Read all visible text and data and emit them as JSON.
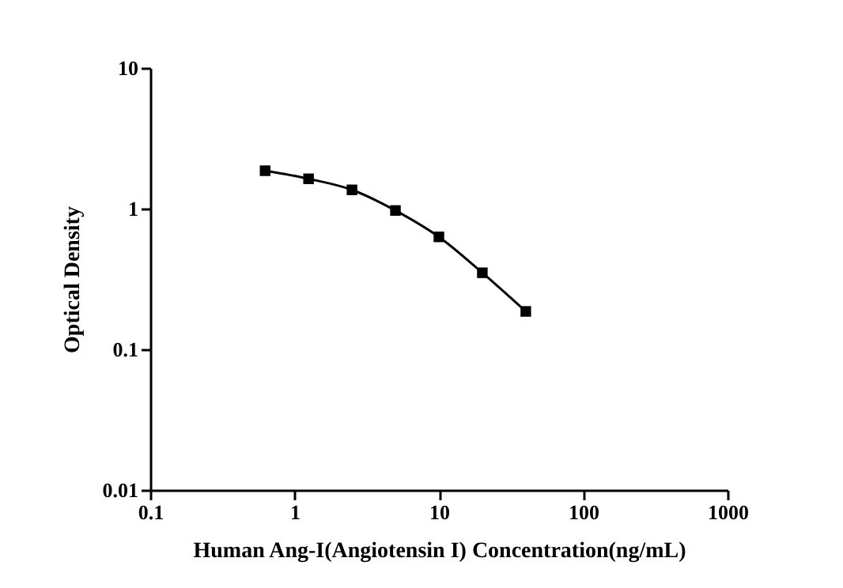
{
  "chart_data": {
    "type": "line",
    "xlabel": "Human Ang-I(Angiotensin I) Concentration(ng/mL)",
    "ylabel": "Optical Density",
    "x": [
      0.625,
      1.25,
      2.5,
      5,
      10,
      20,
      40
    ],
    "series": [
      {
        "color": "#000000",
        "values": [
          1.86,
          1.63,
          1.36,
          0.97,
          0.63,
          0.35,
          0.186
        ]
      }
    ],
    "log": "xy",
    "xlim": [
      0.1,
      1000
    ],
    "xticks": [
      0.1,
      1,
      10,
      100,
      1000
    ],
    "ylim": [
      0.01,
      10
    ],
    "yticks": [
      0.01,
      0.1,
      1,
      10
    ],
    "grid": false,
    "marker": "square",
    "line_style": "solid"
  }
}
